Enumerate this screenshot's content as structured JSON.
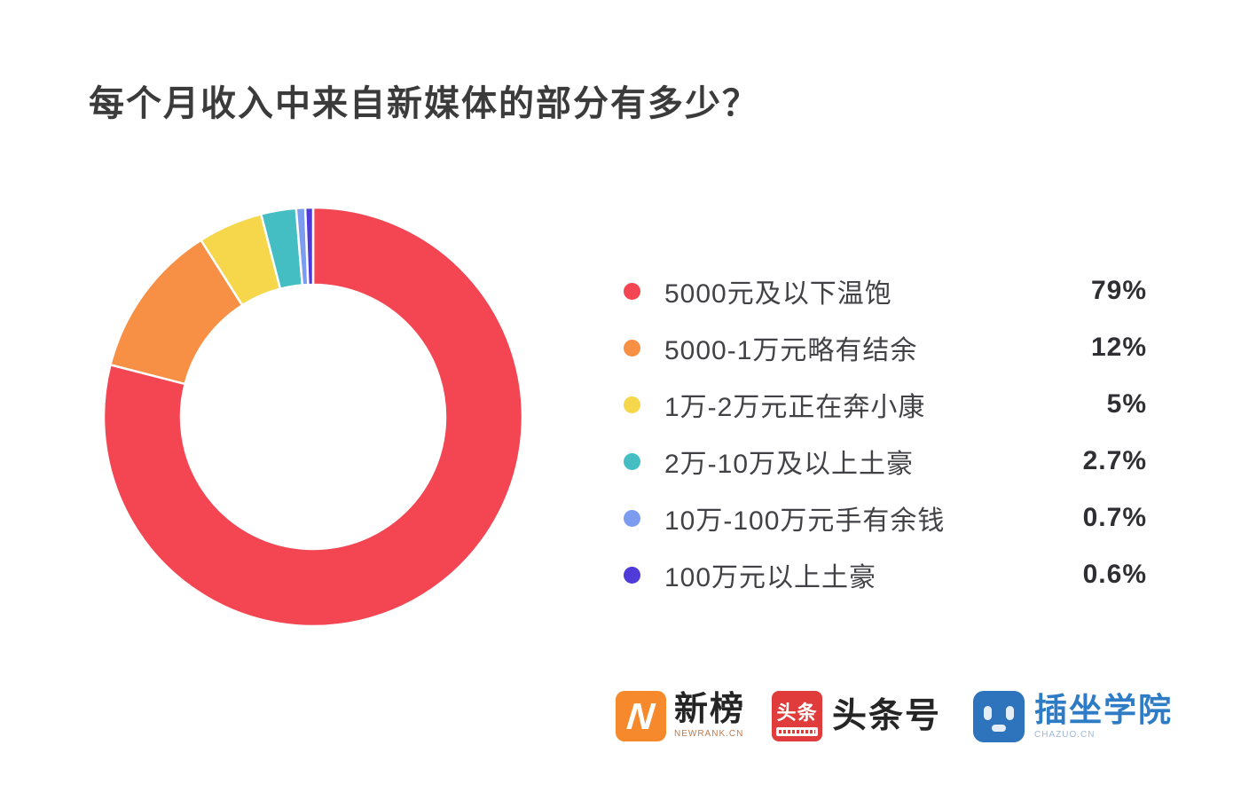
{
  "title": "每个月收入中来自新媒体的部分有多少？",
  "chart_data": {
    "type": "pie",
    "subtype": "donut",
    "title": "每个月收入中来自新媒体的部分有多少？",
    "legend_position": "right",
    "start_angle_deg": 0,
    "direction": "clockwise",
    "unit": "%",
    "series": [
      {
        "label": "5000元及以下温饱",
        "value": 79,
        "display": "79%",
        "color": "#F34552"
      },
      {
        "label": "5000-1万元略有结余",
        "value": 12,
        "display": "12%",
        "color": "#F78F44"
      },
      {
        "label": "1万-2万元正在奔小康",
        "value": 5,
        "display": "5%",
        "color": "#F6D74B"
      },
      {
        "label": "2万-10万及以上土豪",
        "value": 2.7,
        "display": "2.7%",
        "color": "#44BEC3"
      },
      {
        "label": "10万-100万元手有余钱",
        "value": 0.7,
        "display": "0.7%",
        "color": "#7C9CEF"
      },
      {
        "label": "100万元以上土豪",
        "value": 0.6,
        "display": "0.6%",
        "color": "#4E3BD8"
      }
    ]
  },
  "footer": {
    "logos": [
      {
        "name": "newrank",
        "icon_text": "N",
        "label": "新榜",
        "sub_label": "NEWRANK.CN",
        "icon_color": "#F6892C"
      },
      {
        "name": "toutiao",
        "icon_text": "头条",
        "label": "头条号",
        "icon_color": "#E13C3C"
      },
      {
        "name": "chazuo",
        "label": "插坐学院",
        "sub_label": "CHAZUO.CN",
        "icon_color": "#2E74BD",
        "label_color": "#2F7CC6"
      }
    ]
  }
}
